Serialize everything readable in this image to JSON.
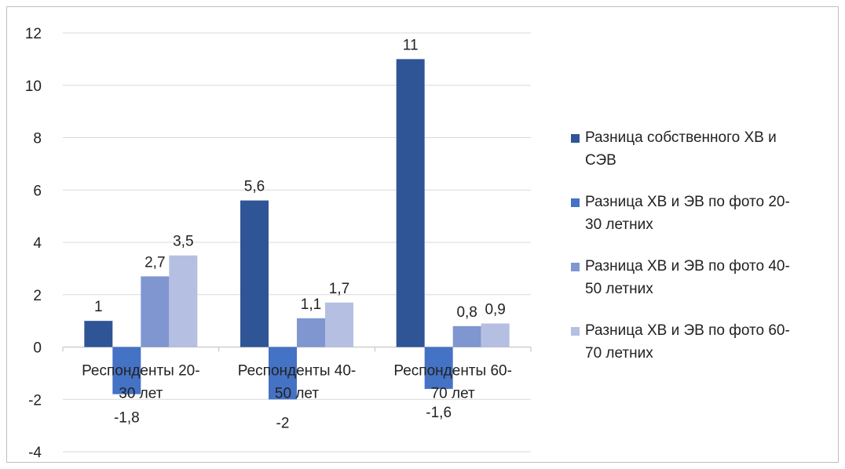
{
  "chart_data": {
    "type": "bar",
    "categories": [
      [
        "Респонденты 20-",
        "30 лет"
      ],
      [
        "Респонденты 40-",
        "50 лет"
      ],
      [
        "Респонденты 60-",
        "70 лет"
      ]
    ],
    "series": [
      {
        "name": "Разница собственного ХВ и СЭВ",
        "values": [
          1,
          5.6,
          11
        ],
        "labels": [
          "1",
          "5,6",
          "11"
        ],
        "color": "#2f5597"
      },
      {
        "name": "Разница ХВ и ЭВ по фото 20-30 летних",
        "values": [
          -1.8,
          -2,
          -1.6
        ],
        "labels": [
          "-1,8",
          "-2",
          "-1,6"
        ],
        "color": "#4472c4"
      },
      {
        "name": "Разница ХВ и ЭВ по фото 40-50 летних",
        "values": [
          2.7,
          1.1,
          0.8
        ],
        "labels": [
          "2,7",
          "1,1",
          "0,8"
        ],
        "color": "#7f96d0"
      },
      {
        "name": "Разница ХВ и ЭВ по фото 60-70 летних",
        "values": [
          3.5,
          1.7,
          0.9
        ],
        "labels": [
          "3,5",
          "1,7",
          "0,9"
        ],
        "color": "#b4bfe2"
      }
    ],
    "yticks": [
      12,
      10,
      8,
      6,
      4,
      2,
      0,
      -2,
      -4
    ],
    "ylim": [
      -4,
      12
    ],
    "grid": true,
    "legend_position": "right",
    "title": "",
    "xlabel": "",
    "ylabel": ""
  },
  "legend": {
    "items": [
      [
        "Разница собственного ХВ и",
        "СЭВ"
      ],
      [
        "Разница ХВ и ЭВ по фото 20-",
        "30 летних"
      ],
      [
        "Разница ХВ и ЭВ по фото 40-",
        "50 летних"
      ],
      [
        "Разница ХВ и ЭВ по фото 60-",
        "70 летних"
      ]
    ]
  }
}
